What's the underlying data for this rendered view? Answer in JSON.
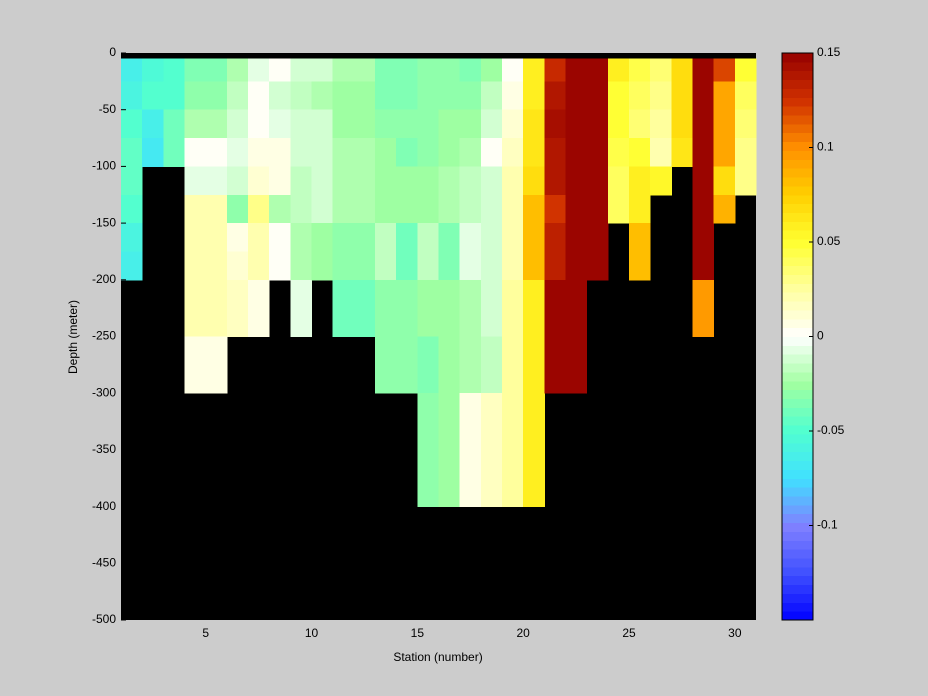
{
  "chart_data": {
    "type": "heatmap",
    "xlabel": "Station (number)",
    "ylabel": "Depth (meter)",
    "x_bins": [
      1,
      2,
      3,
      4,
      5,
      6,
      7,
      8,
      9,
      10,
      11,
      12,
      13,
      14,
      15,
      16,
      17,
      18,
      19,
      20,
      21,
      22,
      23,
      24,
      25,
      26,
      27,
      28,
      29,
      30,
      31
    ],
    "y_bins": [
      0,
      -5,
      -25,
      -50,
      -75,
      -100,
      -125,
      -150,
      -175,
      -200,
      -225,
      -250,
      -275,
      -300,
      -325,
      -350,
      -375,
      -400,
      -425,
      -450,
      -475,
      -500
    ],
    "xlim": [
      1,
      31
    ],
    "ylim": [
      -500,
      0
    ],
    "xticks": [
      5,
      10,
      15,
      20,
      25,
      30
    ],
    "yticks": [
      0,
      -50,
      -100,
      -150,
      -200,
      -250,
      -300,
      -350,
      -400,
      -450,
      -500
    ],
    "clim": [
      -0.15,
      0.15
    ],
    "cticks": [
      0.15,
      0.1,
      0.05,
      0,
      -0.05,
      -0.1
    ],
    "colormap": [
      "#0000ff",
      "#4050ff",
      "#8080ff",
      "#40e0ff",
      "#50ffd0",
      "#a0ffa0",
      "#ffffff",
      "#ffffa0",
      "#ffff30",
      "#ffd000",
      "#ff9000",
      "#d03000",
      "#960000"
    ],
    "colormap_levels": 64,
    "missing_color": "#000000",
    "values": [
      [
        null,
        -0.065,
        -0.06,
        -0.05,
        -0.045,
        -0.045,
        -0.05,
        -0.06,
        -0.065,
        null,
        null,
        null,
        null,
        null,
        null,
        null,
        null,
        null,
        null,
        null,
        null
      ],
      [
        null,
        -0.055,
        -0.05,
        -0.065,
        -0.07,
        null,
        null,
        null,
        null,
        null,
        null,
        null,
        null,
        null,
        null,
        null,
        null,
        null,
        null,
        null,
        null
      ],
      [
        null,
        -0.05,
        -0.05,
        -0.04,
        -0.04,
        null,
        null,
        null,
        null,
        null,
        null,
        null,
        null,
        null,
        null,
        null,
        null,
        null,
        null,
        null,
        null
      ],
      [
        null,
        -0.035,
        -0.03,
        -0.02,
        0,
        -0.005,
        0.02,
        0.02,
        0.02,
        0.02,
        0.02,
        0.005,
        0.005,
        null,
        null,
        null,
        null,
        null,
        null,
        null,
        null
      ],
      [
        null,
        -0.035,
        -0.03,
        -0.02,
        0,
        -0.005,
        0.02,
        0.02,
        0.02,
        0.02,
        0.02,
        0.005,
        0.005,
        null,
        null,
        null,
        null,
        null,
        null,
        null,
        null
      ],
      [
        null,
        -0.02,
        -0.015,
        -0.01,
        -0.005,
        -0.01,
        -0.03,
        0.005,
        0.01,
        0.015,
        0.015,
        null,
        null,
        null,
        null,
        null,
        null,
        null,
        null,
        null,
        null
      ],
      [
        null,
        -0.005,
        0,
        0,
        0.005,
        0.01,
        0.03,
        0.02,
        0.02,
        0.005,
        0.005,
        null,
        null,
        null,
        null,
        null,
        null,
        null,
        null,
        null,
        null
      ],
      [
        null,
        0,
        -0.01,
        -0.005,
        0.005,
        0.005,
        -0.02,
        0,
        0,
        null,
        null,
        null,
        null,
        null,
        null,
        null,
        null,
        null,
        null,
        null,
        null
      ],
      [
        null,
        -0.01,
        -0.015,
        -0.01,
        -0.01,
        -0.015,
        -0.015,
        -0.02,
        -0.02,
        -0.005,
        -0.005,
        null,
        null,
        null,
        null,
        null,
        null,
        null,
        null,
        null,
        null
      ],
      [
        null,
        -0.01,
        -0.02,
        -0.01,
        -0.01,
        -0.01,
        -0.01,
        -0.025,
        -0.025,
        null,
        null,
        null,
        null,
        null,
        null,
        null,
        null,
        null,
        null,
        null,
        null
      ],
      [
        null,
        -0.02,
        -0.025,
        -0.025,
        -0.02,
        -0.02,
        -0.02,
        -0.03,
        -0.03,
        -0.04,
        -0.04,
        null,
        null,
        null,
        null,
        null,
        null,
        null,
        null,
        null,
        null
      ],
      [
        null,
        -0.02,
        -0.025,
        -0.025,
        -0.02,
        -0.02,
        -0.02,
        -0.03,
        -0.03,
        -0.04,
        -0.04,
        null,
        null,
        null,
        null,
        null,
        null,
        null,
        null,
        null,
        null
      ],
      [
        null,
        -0.035,
        -0.035,
        -0.03,
        -0.025,
        -0.025,
        -0.025,
        -0.015,
        -0.015,
        -0.03,
        -0.03,
        -0.03,
        -0.03,
        null,
        null,
        null,
        null,
        null,
        null,
        null,
        null
      ],
      [
        null,
        -0.035,
        -0.035,
        -0.03,
        -0.035,
        -0.025,
        -0.025,
        -0.04,
        -0.04,
        -0.03,
        -0.03,
        -0.03,
        -0.03,
        null,
        null,
        null,
        null,
        null,
        null,
        null,
        null
      ],
      [
        null,
        -0.03,
        -0.03,
        -0.03,
        -0.03,
        -0.025,
        -0.025,
        -0.015,
        -0.015,
        -0.025,
        -0.025,
        -0.035,
        -0.035,
        -0.03,
        -0.03,
        -0.03,
        -0.03,
        null,
        null,
        null,
        null
      ],
      [
        null,
        -0.03,
        -0.03,
        -0.025,
        -0.025,
        -0.02,
        -0.02,
        -0.035,
        -0.035,
        -0.025,
        -0.025,
        -0.025,
        -0.025,
        -0.025,
        -0.025,
        -0.025,
        -0.025,
        null,
        null,
        null,
        null
      ],
      [
        null,
        -0.035,
        -0.03,
        -0.025,
        -0.02,
        -0.015,
        -0.015,
        -0.005,
        -0.005,
        -0.02,
        -0.02,
        -0.02,
        -0.02,
        0.005,
        0.005,
        0.005,
        0.005,
        null,
        null,
        null,
        null
      ],
      [
        null,
        -0.025,
        -0.015,
        -0.01,
        0,
        -0.01,
        -0.01,
        -0.01,
        -0.01,
        -0.01,
        -0.01,
        -0.015,
        -0.015,
        0.015,
        0.015,
        0.015,
        0.015,
        null,
        null,
        null,
        null
      ],
      [
        null,
        0,
        0.005,
        0.01,
        0.015,
        0.02,
        0.02,
        0.02,
        0.02,
        0.025,
        0.025,
        0.025,
        0.025,
        0.025,
        0.025,
        0.025,
        0.025,
        null,
        null,
        null,
        null
      ],
      [
        null,
        0.06,
        0.06,
        0.065,
        0.065,
        0.07,
        0.08,
        0.08,
        0.08,
        0.06,
        0.06,
        0.06,
        0.06,
        0.06,
        0.06,
        0.06,
        0.06,
        null,
        null,
        null,
        null
      ],
      [
        null,
        0.13,
        0.14,
        0.145,
        0.14,
        0.14,
        0.125,
        0.135,
        0.135,
        0.15,
        0.15,
        0.15,
        0.15,
        null,
        null,
        null,
        null,
        null,
        null,
        null,
        null
      ],
      [
        null,
        0.15,
        0.15,
        0.15,
        0.15,
        0.15,
        0.15,
        0.15,
        0.15,
        0.15,
        0.15,
        0.15,
        0.15,
        null,
        null,
        null,
        null,
        null,
        null,
        null,
        null
      ],
      [
        null,
        0.15,
        0.15,
        0.15,
        0.15,
        0.15,
        0.15,
        0.15,
        0.15,
        null,
        null,
        null,
        null,
        null,
        null,
        null,
        null,
        null,
        null,
        null,
        null
      ],
      [
        null,
        0.06,
        0.05,
        0.05,
        0.045,
        0.04,
        0.04,
        null,
        null,
        null,
        null,
        null,
        null,
        null,
        null,
        null,
        null,
        null,
        null,
        null,
        null
      ],
      [
        null,
        0.045,
        0.04,
        0.035,
        0.05,
        0.06,
        0.06,
        0.08,
        0.08,
        null,
        null,
        null,
        null,
        null,
        null,
        null,
        null,
        null,
        null,
        null,
        null
      ],
      [
        null,
        0.035,
        0.03,
        0.025,
        0.02,
        0.055,
        null,
        null,
        null,
        null,
        null,
        null,
        null,
        null,
        null,
        null,
        null,
        null,
        null,
        null,
        null
      ],
      [
        null,
        0.07,
        0.07,
        0.07,
        0.065,
        null,
        null,
        null,
        null,
        null,
        null,
        null,
        null,
        null,
        null,
        null,
        null,
        null,
        null,
        null,
        null
      ],
      [
        null,
        0.15,
        0.15,
        0.15,
        0.15,
        0.15,
        0.15,
        0.15,
        0.15,
        0.095,
        0.095,
        null,
        null,
        null,
        null,
        null,
        null,
        null,
        null,
        null,
        null
      ],
      [
        null,
        0.12,
        0.09,
        0.09,
        0.09,
        0.07,
        0.085,
        null,
        null,
        null,
        null,
        null,
        null,
        null,
        null,
        null,
        null,
        null,
        null,
        null,
        null
      ],
      [
        null,
        0.05,
        0.04,
        0.035,
        0.03,
        0.03,
        null,
        null,
        null,
        null,
        null,
        null,
        null,
        null,
        null,
        null,
        null,
        null,
        null,
        null,
        null
      ]
    ]
  }
}
